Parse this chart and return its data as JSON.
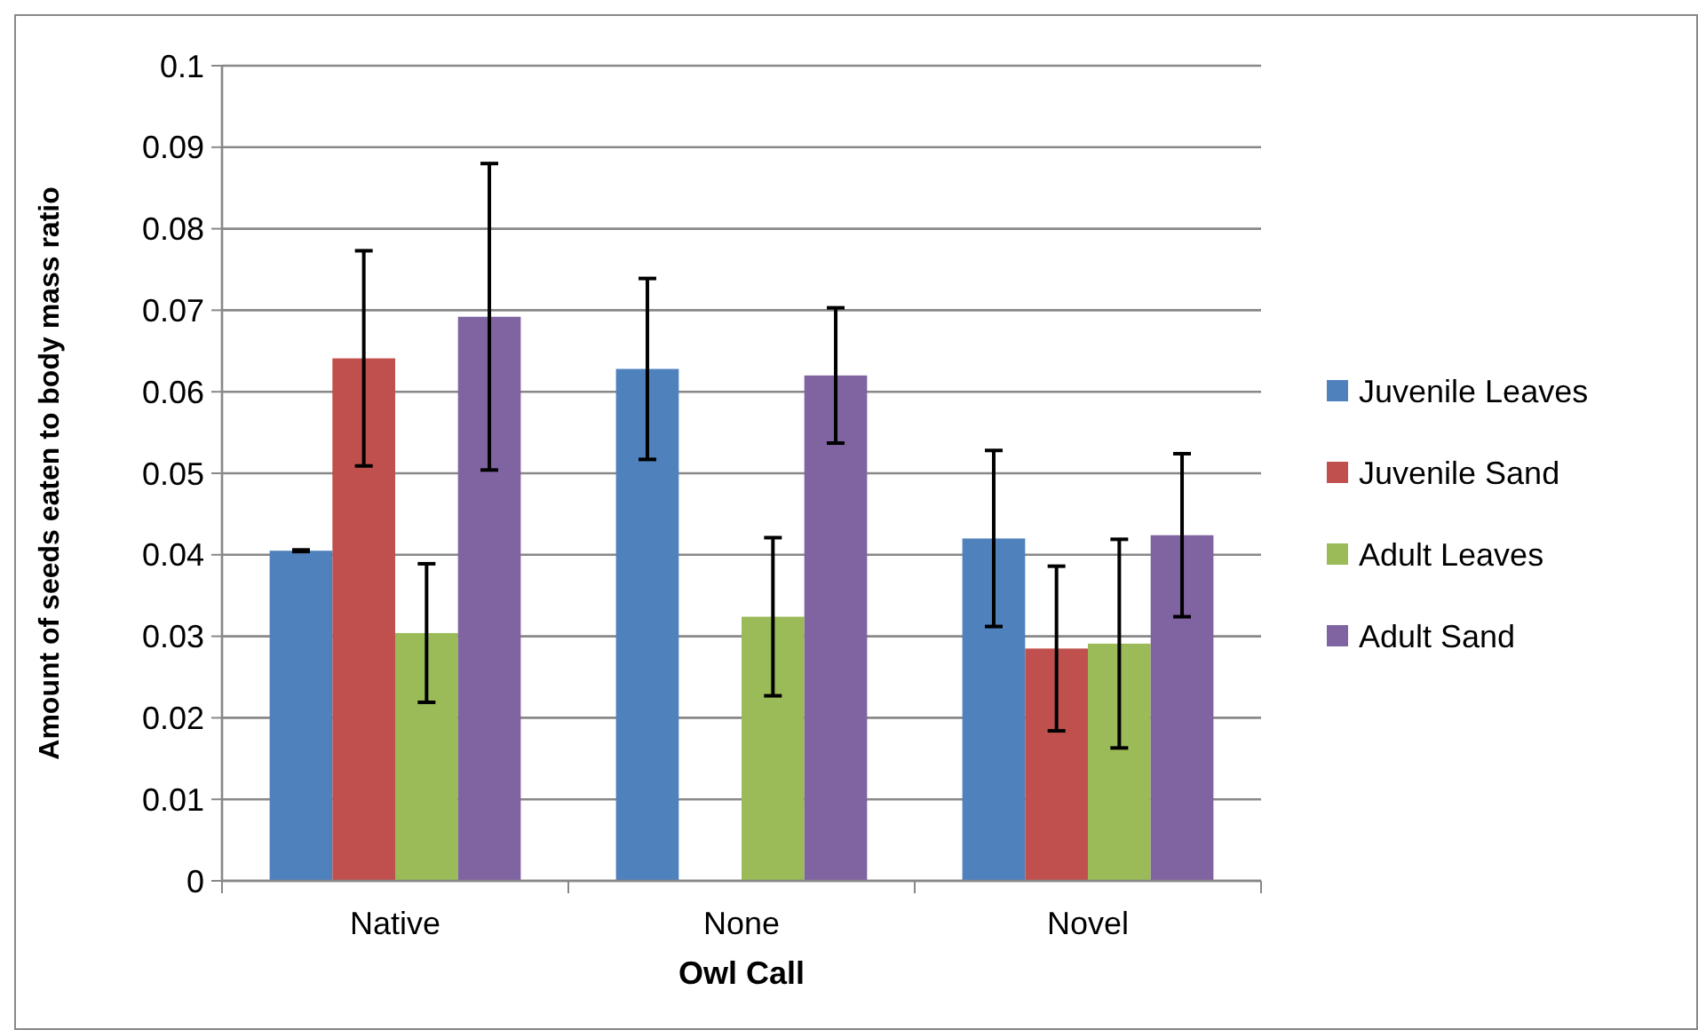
{
  "chart_data": {
    "type": "bar",
    "xlabel": "Owl Call",
    "ylabel": "Amount of seeds eaten to body mass ratio",
    "categories": [
      "Native",
      "None",
      "Novel"
    ],
    "series": [
      {
        "name": "Juvenile Leaves",
        "color": "#4f81bd",
        "values": [
          0.0405,
          0.0628,
          0.042
        ],
        "errors": [
          0.0001,
          0.0111,
          0.0108
        ]
      },
      {
        "name": "Juvenile Sand",
        "color": "#c0504d",
        "values": [
          0.0641,
          null,
          0.0285
        ],
        "errors": [
          0.0132,
          null,
          0.0101
        ]
      },
      {
        "name": "Adult Leaves",
        "color": "#9bbb59",
        "values": [
          0.0304,
          0.0324,
          0.0291
        ],
        "errors": [
          0.0085,
          0.0097,
          0.0128
        ]
      },
      {
        "name": "Adult Sand",
        "color": "#8064a2",
        "values": [
          0.0692,
          0.062,
          0.0424
        ],
        "errors": [
          0.0188,
          0.0083,
          0.01
        ]
      }
    ],
    "ylim": [
      0,
      0.1
    ],
    "yticks": [
      0,
      0.01,
      0.02,
      0.03,
      0.04,
      0.05,
      0.06,
      0.07,
      0.08,
      0.09,
      0.1
    ],
    "grid": "y",
    "legend": "right"
  }
}
